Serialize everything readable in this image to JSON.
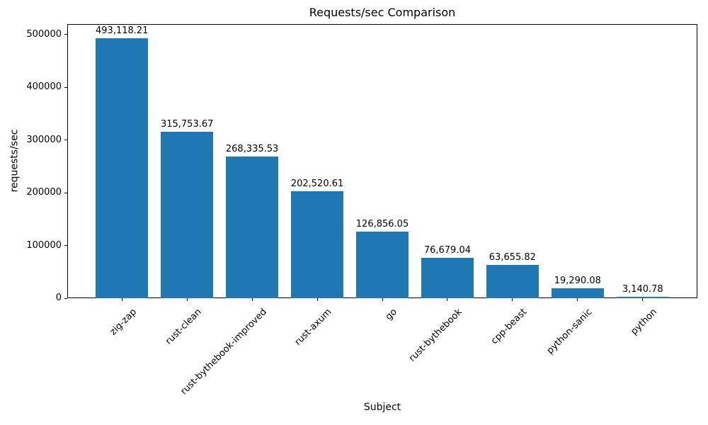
{
  "chart_data": {
    "type": "bar",
    "title": "Requests/sec Comparison",
    "xlabel": "Subject",
    "ylabel": "requests/sec",
    "categories": [
      "zig-zap",
      "rust-clean",
      "rust-bythebook-improved",
      "rust-axum",
      "go",
      "rust-bythebook",
      "cpp-beast",
      "python-sanic",
      "python"
    ],
    "values": [
      493118.21,
      315753.67,
      268335.53,
      202520.61,
      126856.05,
      76679.04,
      63655.82,
      19290.08,
      3140.78
    ],
    "value_labels": [
      "493,118.21",
      "315,753.67",
      "268,335.53",
      "202,520.61",
      "126,856.05",
      "76,679.04",
      "63,655.82",
      "19,290.08",
      "3,140.78"
    ],
    "yticks": [
      0,
      100000,
      200000,
      300000,
      400000,
      500000
    ],
    "ytick_labels": [
      "0",
      "100000",
      "200000",
      "300000",
      "400000",
      "500000"
    ],
    "ylim": [
      0,
      520000
    ],
    "bar_color": "#1f77b4",
    "text_color": "#000000",
    "axis_color": "#000000",
    "background_color": "#ffffff",
    "grid": false,
    "legend": null,
    "xtick_rotation_deg": 45
  }
}
